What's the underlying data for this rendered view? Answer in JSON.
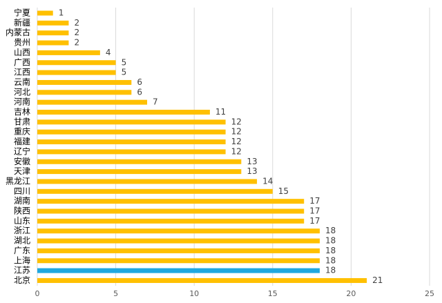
{
  "chart_data": {
    "type": "bar",
    "orientation": "horizontal",
    "title": "",
    "xlabel": "",
    "ylabel": "",
    "xlim": [
      0,
      25
    ],
    "x_ticks": [
      0,
      5,
      10,
      15,
      20,
      25
    ],
    "grid": "vertical",
    "legend": "none",
    "bar_color": "#ffc000",
    "highlight_color": "#1fa8e0",
    "highlight_category": "江苏",
    "categories": [
      "宁夏",
      "新疆",
      "内蒙古",
      "贵州",
      "山西",
      "广西",
      "江西",
      "云南",
      "河北",
      "河南",
      "吉林",
      "甘肃",
      "重庆",
      "福建",
      "辽宁",
      "安徽",
      "天津",
      "黑龙江",
      "四川",
      "湖南",
      "陕西",
      "山东",
      "浙江",
      "湖北",
      "广东",
      "上海",
      "江苏",
      "北京"
    ],
    "values": [
      1,
      2,
      2,
      2,
      4,
      5,
      5,
      6,
      6,
      7,
      11,
      12,
      12,
      12,
      12,
      13,
      13,
      14,
      15,
      17,
      17,
      17,
      18,
      18,
      18,
      18,
      18,
      21
    ]
  }
}
